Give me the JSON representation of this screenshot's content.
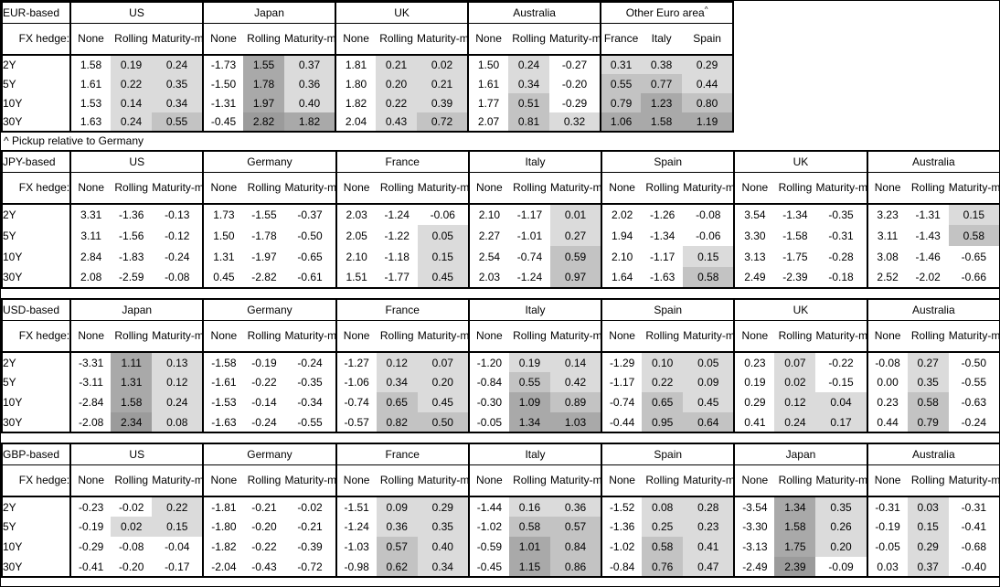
{
  "footnote": "^ Pickup relative to Germany",
  "shading": {
    "rule": "Rolling, Maturity-matched and Other-Euro-area columns are shaded by value; None columns and negative values are unshaded",
    "thresholds": [
      0,
      0.5,
      1.0,
      2.0
    ],
    "bucket_order": [
      "light",
      "mid",
      "dark",
      "darkest"
    ],
    "colors": {
      "none": "#ffffff",
      "light": "#dbdbdb",
      "mid": "#c3c3c3",
      "dark": "#a9a9a9",
      "darkest": "#9b9b9b"
    }
  },
  "chart_data": [
    {
      "type": "table",
      "title": "EUR-based",
      "fx_hedge_label": "FX hedge:",
      "tenors": [
        "2Y",
        "5Y",
        "10Y",
        "30Y"
      ],
      "groups": [
        {
          "name": "US",
          "sup": "",
          "columns": [
            "None",
            "Rolling",
            "Maturity-matched"
          ],
          "shaded_columns": [
            false,
            true,
            true
          ],
          "values": [
            [
              "1.58",
              "0.19",
              "0.24"
            ],
            [
              "1.61",
              "0.22",
              "0.35"
            ],
            [
              "1.53",
              "0.14",
              "0.34"
            ],
            [
              "1.63",
              "0.24",
              "0.55"
            ]
          ]
        },
        {
          "name": "Japan",
          "sup": "",
          "columns": [
            "None",
            "Rolling",
            "Maturity-matched"
          ],
          "shaded_columns": [
            false,
            true,
            true
          ],
          "values": [
            [
              "-1.73",
              "1.55",
              "0.37"
            ],
            [
              "-1.50",
              "1.78",
              "0.36"
            ],
            [
              "-1.31",
              "1.97",
              "0.40"
            ],
            [
              "-0.45",
              "2.82",
              "1.82"
            ]
          ]
        },
        {
          "name": "UK",
          "sup": "",
          "columns": [
            "None",
            "Rolling",
            "Maturity-matched"
          ],
          "shaded_columns": [
            false,
            true,
            true
          ],
          "values": [
            [
              "1.81",
              "0.21",
              "0.02"
            ],
            [
              "1.80",
              "0.20",
              "0.21"
            ],
            [
              "1.82",
              "0.22",
              "0.39"
            ],
            [
              "2.04",
              "0.43",
              "0.72"
            ]
          ]
        },
        {
          "name": "Australia",
          "sup": "",
          "columns": [
            "None",
            "Rolling",
            "Maturity-matched"
          ],
          "shaded_columns": [
            false,
            true,
            true
          ],
          "values": [
            [
              "1.50",
              "0.24",
              "-0.27"
            ],
            [
              "1.61",
              "0.34",
              "-0.20"
            ],
            [
              "1.77",
              "0.51",
              "-0.29"
            ],
            [
              "2.07",
              "0.81",
              "0.32"
            ]
          ]
        },
        {
          "name": "Other Euro area",
          "sup": "^",
          "columns": [
            "France",
            "Italy",
            "Spain"
          ],
          "shaded_columns": [
            true,
            true,
            true
          ],
          "values": [
            [
              "0.31",
              "0.38",
              "0.29"
            ],
            [
              "0.55",
              "0.77",
              "0.44"
            ],
            [
              "0.79",
              "1.23",
              "0.80"
            ],
            [
              "1.06",
              "1.58",
              "1.19"
            ]
          ]
        }
      ]
    },
    {
      "type": "table",
      "title": "JPY-based",
      "fx_hedge_label": "FX hedge:",
      "tenors": [
        "2Y",
        "5Y",
        "10Y",
        "30Y"
      ],
      "groups": [
        {
          "name": "US",
          "sup": "",
          "columns": [
            "None",
            "Rolling",
            "Maturity-matched"
          ],
          "shaded_columns": [
            false,
            true,
            true
          ],
          "values": [
            [
              "3.31",
              "-1.36",
              "-0.13"
            ],
            [
              "3.11",
              "-1.56",
              "-0.12"
            ],
            [
              "2.84",
              "-1.83",
              "-0.24"
            ],
            [
              "2.08",
              "-2.59",
              "-0.08"
            ]
          ]
        },
        {
          "name": "Germany",
          "sup": "",
          "columns": [
            "None",
            "Rolling",
            "Maturity-matched"
          ],
          "shaded_columns": [
            false,
            true,
            true
          ],
          "values": [
            [
              "1.73",
              "-1.55",
              "-0.37"
            ],
            [
              "1.50",
              "-1.78",
              "-0.50"
            ],
            [
              "1.31",
              "-1.97",
              "-0.65"
            ],
            [
              "0.45",
              "-2.82",
              "-0.61"
            ]
          ]
        },
        {
          "name": "France",
          "sup": "",
          "columns": [
            "None",
            "Rolling",
            "Maturity-matched"
          ],
          "shaded_columns": [
            false,
            true,
            true
          ],
          "values": [
            [
              "2.03",
              "-1.24",
              "-0.06"
            ],
            [
              "2.05",
              "-1.22",
              "0.05"
            ],
            [
              "2.10",
              "-1.18",
              "0.15"
            ],
            [
              "1.51",
              "-1.77",
              "0.45"
            ]
          ]
        },
        {
          "name": "Italy",
          "sup": "",
          "columns": [
            "None",
            "Rolling",
            "Maturity-matched"
          ],
          "shaded_columns": [
            false,
            true,
            true
          ],
          "values": [
            [
              "2.10",
              "-1.17",
              "0.01"
            ],
            [
              "2.27",
              "-1.01",
              "0.27"
            ],
            [
              "2.54",
              "-0.74",
              "0.59"
            ],
            [
              "2.03",
              "-1.24",
              "0.97"
            ]
          ]
        },
        {
          "name": "Spain",
          "sup": "",
          "columns": [
            "None",
            "Rolling",
            "Maturity-matched"
          ],
          "shaded_columns": [
            false,
            true,
            true
          ],
          "values": [
            [
              "2.02",
              "-1.26",
              "-0.08"
            ],
            [
              "1.94",
              "-1.34",
              "-0.06"
            ],
            [
              "2.10",
              "-1.17",
              "0.15"
            ],
            [
              "1.64",
              "-1.63",
              "0.58"
            ]
          ]
        },
        {
          "name": "UK",
          "sup": "",
          "columns": [
            "None",
            "Rolling",
            "Maturity-matched"
          ],
          "shaded_columns": [
            false,
            true,
            true
          ],
          "values": [
            [
              "3.54",
              "-1.34",
              "-0.35"
            ],
            [
              "3.30",
              "-1.58",
              "-0.31"
            ],
            [
              "3.13",
              "-1.75",
              "-0.28"
            ],
            [
              "2.49",
              "-2.39",
              "-0.18"
            ]
          ]
        },
        {
          "name": "Australia",
          "sup": "",
          "columns": [
            "None",
            "Rolling",
            "Maturity-matched"
          ],
          "shaded_columns": [
            false,
            true,
            true
          ],
          "values": [
            [
              "3.23",
              "-1.31",
              "0.15"
            ],
            [
              "3.11",
              "-1.43",
              "0.58"
            ],
            [
              "3.08",
              "-1.46",
              "-0.65"
            ],
            [
              "2.52",
              "-2.02",
              "-0.66"
            ]
          ]
        }
      ]
    },
    {
      "type": "table",
      "title": "USD-based",
      "fx_hedge_label": "FX hedge:",
      "tenors": [
        "2Y",
        "5Y",
        "10Y",
        "30Y"
      ],
      "groups": [
        {
          "name": "Japan",
          "sup": "",
          "columns": [
            "None",
            "Rolling",
            "Maturity-matched"
          ],
          "shaded_columns": [
            false,
            true,
            true
          ],
          "values": [
            [
              "-3.31",
              "1.11",
              "0.13"
            ],
            [
              "-3.11",
              "1.31",
              "0.12"
            ],
            [
              "-2.84",
              "1.58",
              "0.24"
            ],
            [
              "-2.08",
              "2.34",
              "0.08"
            ]
          ]
        },
        {
          "name": "Germany",
          "sup": "",
          "columns": [
            "None",
            "Rolling",
            "Maturity-matched"
          ],
          "shaded_columns": [
            false,
            true,
            true
          ],
          "values": [
            [
              "-1.58",
              "-0.19",
              "-0.24"
            ],
            [
              "-1.61",
              "-0.22",
              "-0.35"
            ],
            [
              "-1.53",
              "-0.14",
              "-0.34"
            ],
            [
              "-1.63",
              "-0.24",
              "-0.55"
            ]
          ]
        },
        {
          "name": "France",
          "sup": "",
          "columns": [
            "None",
            "Rolling",
            "Maturity-matched"
          ],
          "shaded_columns": [
            false,
            true,
            true
          ],
          "values": [
            [
              "-1.27",
              "0.12",
              "0.07"
            ],
            [
              "-1.06",
              "0.34",
              "0.20"
            ],
            [
              "-0.74",
              "0.65",
              "0.45"
            ],
            [
              "-0.57",
              "0.82",
              "0.50"
            ]
          ]
        },
        {
          "name": "Italy",
          "sup": "",
          "columns": [
            "None",
            "Rolling",
            "Maturity-matched"
          ],
          "shaded_columns": [
            false,
            true,
            true
          ],
          "values": [
            [
              "-1.20",
              "0.19",
              "0.14"
            ],
            [
              "-0.84",
              "0.55",
              "0.42"
            ],
            [
              "-0.30",
              "1.09",
              "0.89"
            ],
            [
              "-0.05",
              "1.34",
              "1.03"
            ]
          ]
        },
        {
          "name": "Spain",
          "sup": "",
          "columns": [
            "None",
            "Rolling",
            "Maturity-matched"
          ],
          "shaded_columns": [
            false,
            true,
            true
          ],
          "values": [
            [
              "-1.29",
              "0.10",
              "0.05"
            ],
            [
              "-1.17",
              "0.22",
              "0.09"
            ],
            [
              "-0.74",
              "0.65",
              "0.45"
            ],
            [
              "-0.44",
              "0.95",
              "0.64"
            ]
          ]
        },
        {
          "name": "UK",
          "sup": "",
          "columns": [
            "None",
            "Rolling",
            "Maturity-matched"
          ],
          "shaded_columns": [
            false,
            true,
            true
          ],
          "values": [
            [
              "0.23",
              "0.07",
              "-0.22"
            ],
            [
              "0.19",
              "0.02",
              "-0.15"
            ],
            [
              "0.29",
              "0.12",
              "0.04"
            ],
            [
              "0.41",
              "0.24",
              "0.17"
            ]
          ]
        },
        {
          "name": "Australia",
          "sup": "",
          "columns": [
            "None",
            "Rolling",
            "Maturity-matched"
          ],
          "shaded_columns": [
            false,
            true,
            true
          ],
          "values": [
            [
              "-0.08",
              "0.27",
              "-0.50"
            ],
            [
              "0.00",
              "0.35",
              "-0.55"
            ],
            [
              "0.23",
              "0.58",
              "-0.63"
            ],
            [
              "0.44",
              "0.79",
              "-0.24"
            ]
          ]
        }
      ]
    },
    {
      "type": "table",
      "title": "GBP-based",
      "fx_hedge_label": "FX hedge:",
      "tenors": [
        "2Y",
        "5Y",
        "10Y",
        "30Y"
      ],
      "groups": [
        {
          "name": "US",
          "sup": "",
          "columns": [
            "None",
            "Rolling",
            "Maturity-matched"
          ],
          "shaded_columns": [
            false,
            true,
            true
          ],
          "values": [
            [
              "-0.23",
              "-0.02",
              "0.22"
            ],
            [
              "-0.19",
              "0.02",
              "0.15"
            ],
            [
              "-0.29",
              "-0.08",
              "-0.04"
            ],
            [
              "-0.41",
              "-0.20",
              "-0.17"
            ]
          ]
        },
        {
          "name": "Germany",
          "sup": "",
          "columns": [
            "None",
            "Rolling",
            "Maturity-matched"
          ],
          "shaded_columns": [
            false,
            true,
            true
          ],
          "values": [
            [
              "-1.81",
              "-0.21",
              "-0.02"
            ],
            [
              "-1.80",
              "-0.20",
              "-0.21"
            ],
            [
              "-1.82",
              "-0.22",
              "-0.39"
            ],
            [
              "-2.04",
              "-0.43",
              "-0.72"
            ]
          ]
        },
        {
          "name": "France",
          "sup": "",
          "columns": [
            "None",
            "Rolling",
            "Maturity-matched"
          ],
          "shaded_columns": [
            false,
            true,
            true
          ],
          "values": [
            [
              "-1.51",
              "0.09",
              "0.29"
            ],
            [
              "-1.24",
              "0.36",
              "0.35"
            ],
            [
              "-1.03",
              "0.57",
              "0.40"
            ],
            [
              "-0.98",
              "0.62",
              "0.34"
            ]
          ]
        },
        {
          "name": "Italy",
          "sup": "",
          "columns": [
            "None",
            "Rolling",
            "Maturity-matched"
          ],
          "shaded_columns": [
            false,
            true,
            true
          ],
          "values": [
            [
              "-1.44",
              "0.16",
              "0.36"
            ],
            [
              "-1.02",
              "0.58",
              "0.57"
            ],
            [
              "-0.59",
              "1.01",
              "0.84"
            ],
            [
              "-0.45",
              "1.15",
              "0.86"
            ]
          ]
        },
        {
          "name": "Spain",
          "sup": "",
          "columns": [
            "None",
            "Rolling",
            "Maturity-matched"
          ],
          "shaded_columns": [
            false,
            true,
            true
          ],
          "values": [
            [
              "-1.52",
              "0.08",
              "0.28"
            ],
            [
              "-1.36",
              "0.25",
              "0.23"
            ],
            [
              "-1.02",
              "0.58",
              "0.41"
            ],
            [
              "-0.84",
              "0.76",
              "0.47"
            ]
          ]
        },
        {
          "name": "Japan",
          "sup": "",
          "columns": [
            "None",
            "Rolling",
            "Maturity-matched"
          ],
          "shaded_columns": [
            false,
            true,
            true
          ],
          "values": [
            [
              "-3.54",
              "1.34",
              "0.35"
            ],
            [
              "-3.30",
              "1.58",
              "0.26"
            ],
            [
              "-3.13",
              "1.75",
              "0.20"
            ],
            [
              "-2.49",
              "2.39",
              "-0.09"
            ]
          ]
        },
        {
          "name": "Australia",
          "sup": "",
          "columns": [
            "None",
            "Rolling",
            "Maturity-matched"
          ],
          "shaded_columns": [
            false,
            true,
            true
          ],
          "values": [
            [
              "-0.31",
              "0.03",
              "-0.31"
            ],
            [
              "-0.19",
              "0.15",
              "-0.41"
            ],
            [
              "-0.05",
              "0.29",
              "-0.68"
            ],
            [
              "0.03",
              "0.37",
              "-0.40"
            ]
          ]
        }
      ]
    }
  ]
}
